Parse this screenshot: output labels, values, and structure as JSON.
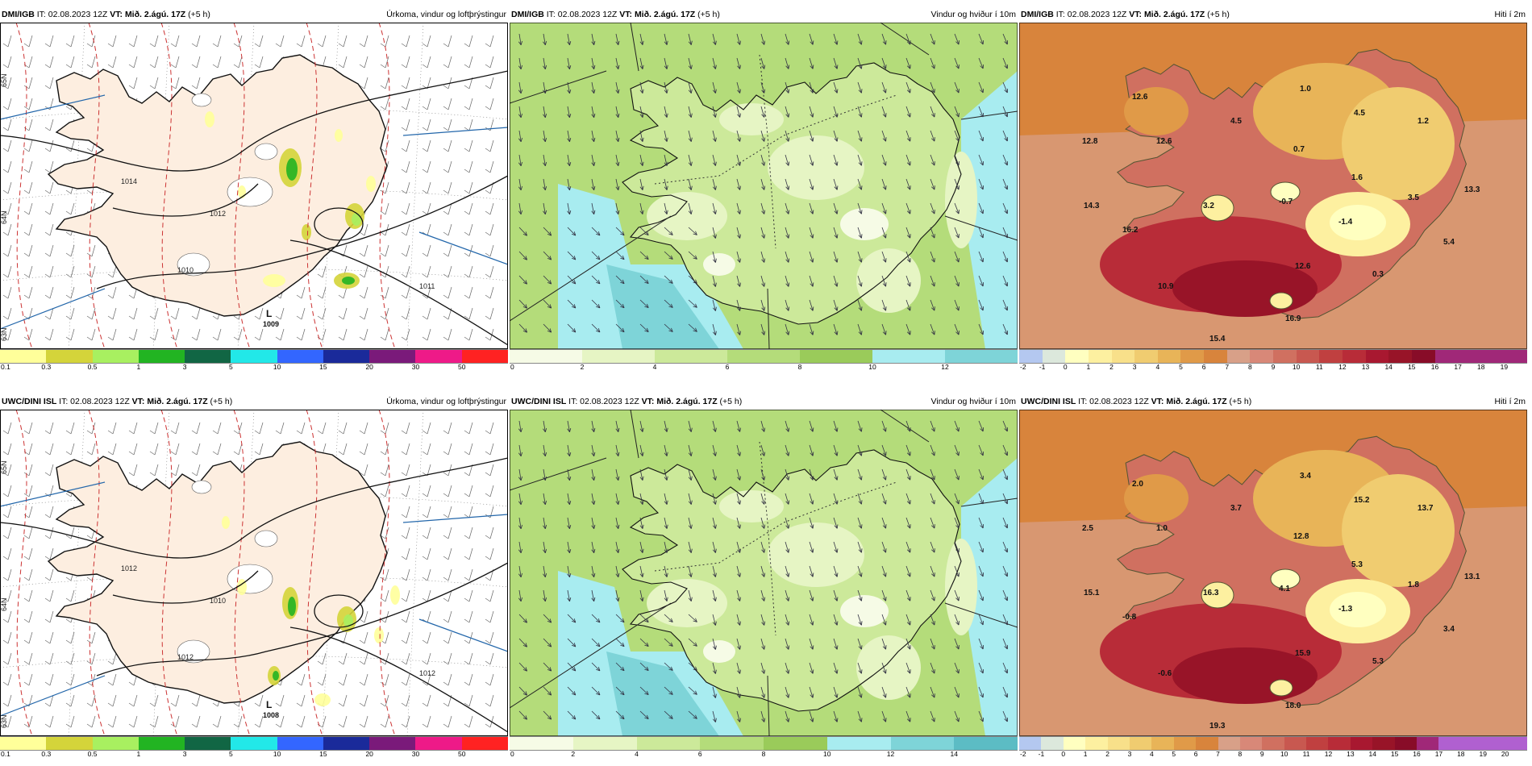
{
  "colors": {
    "precip": [
      "#ffff9a",
      "#d4d43a",
      "#a8f060",
      "#22b422",
      "#116644",
      "#22e8e8",
      "#3366ff",
      "#1a2a9a",
      "#7a1a7a",
      "#ee1a88",
      "#ff2222"
    ],
    "wind": [
      "#f6fbe6",
      "#e6f5c4",
      "#cce99a",
      "#b4dc7a",
      "#9acb5a",
      "#a8ecf0",
      "#7ed4d8",
      "#5cbcc4"
    ],
    "wind2": [
      "#f6fbe6",
      "#e6f5c4",
      "#cce99a",
      "#b4dc7a",
      "#9acb5a",
      "#a8ecf0",
      "#7ed4d8",
      "#5cbcc4",
      "#40a8b0"
    ],
    "temp": [
      "#b4c8f0",
      "#dce8dc",
      "#ffffc0",
      "#fdf0a0",
      "#f8e08a",
      "#f0cc70",
      "#e8b458",
      "#e09a48",
      "#d8843c",
      "#d8a088",
      "#d88878",
      "#d07060",
      "#c85850",
      "#c04040",
      "#b82c38",
      "#a81830",
      "#981428",
      "#880c28",
      "#a02878"
    ],
    "temp2": [
      "#b4c8f0",
      "#dce8dc",
      "#ffffc0",
      "#fdf0a0",
      "#f8e08a",
      "#f0cc70",
      "#e8b458",
      "#e09a48",
      "#d8843c",
      "#d8a088",
      "#d88878",
      "#d07060",
      "#c85850",
      "#c04040",
      "#b82c38",
      "#a81830",
      "#981428",
      "#880c28",
      "#a02878",
      "#b060d0"
    ]
  },
  "icons": {
    "low_marker": "low-pressure-marker",
    "lat_label": "latitude-label",
    "wind_barb": "wind-barb-icon",
    "wind_arrow": "wind-arrow-icon"
  },
  "rows": [
    {
      "model": "DMI/IGB",
      "precip": {
        "title": {
          "model": "DMI/IGB",
          "it": "IT: 02.08.2023 12Z",
          "vt_label": "VT:",
          "vt": "Mið. 2.ágú. 17Z",
          "offset": "(+5 h)",
          "param": "Úrkoma, vindur og loftþrýstingur"
        },
        "ticks": [
          "0.1",
          "0.3",
          "0.5",
          "1",
          "3",
          "5",
          "10",
          "15",
          "20",
          "30",
          "50"
        ],
        "low": {
          "label": "L",
          "value": "1009"
        },
        "isobars": [
          "1010",
          "1014",
          "1012",
          "1011"
        ],
        "lat_labels": [
          "65N",
          "64N",
          "63N"
        ]
      },
      "wind": {
        "title": {
          "model": "DMI/IGB",
          "it": "IT: 02.08.2023 12Z",
          "vt_label": "VT:",
          "vt": "Mið. 2.ágú. 17Z",
          "offset": "(+5 h)",
          "param": "Vindur og hviður í 10m"
        },
        "ticks": [
          "0",
          "2",
          "4",
          "6",
          "8",
          "10",
          "12"
        ]
      },
      "temp": {
        "title": {
          "model": "DMI/IGB",
          "it": "IT: 02.08.2023 12Z",
          "vt_label": "VT:",
          "vt": "Mið. 2.ágú. 17Z",
          "offset": "(+5 h)",
          "param": "Hiti í 2m"
        },
        "ticks": [
          "-2",
          "-1",
          "0",
          "1",
          "2",
          "3",
          "4",
          "5",
          "6",
          "7",
          "8",
          "9",
          "10",
          "11",
          "12",
          "13",
          "14",
          "15",
          "16",
          "17",
          "18",
          "19"
        ],
        "values": [
          "12.6",
          "1.0",
          "4.5",
          "4.5",
          "1.2",
          "12.8",
          "12.6",
          "0.7",
          "1.6",
          "13.3",
          "14.3",
          "3.2",
          "-0.7",
          "3.5",
          "16.2",
          "-1.4",
          "5.4",
          "12.6",
          "0.3",
          "10.9",
          "16.9",
          "15.4"
        ]
      }
    },
    {
      "model": "UWC/DINI ISL",
      "precip": {
        "title": {
          "model": "UWC/DINI ISL",
          "it": "IT: 02.08.2023 12Z",
          "vt_label": "VT:",
          "vt": "Mið. 2.ágú. 17Z",
          "offset": "(+5 h)",
          "param": "Úrkoma, vindur og loftþrýstingur"
        },
        "ticks": [
          "0.1",
          "0.3",
          "0.5",
          "1",
          "3",
          "5",
          "10",
          "15",
          "20",
          "30",
          "50"
        ],
        "low": {
          "label": "L",
          "value": "1008"
        },
        "isobars": [
          "1012",
          "1012",
          "1010",
          "1012"
        ],
        "lat_labels": [
          "65N",
          "64N",
          "63N"
        ]
      },
      "wind": {
        "title": {
          "model": "UWC/DINI ISL",
          "it": "IT: 02.08.2023 12Z",
          "vt_label": "VT:",
          "vt": "Mið. 2.ágú. 17Z",
          "offset": "(+5 h)",
          "param": "Vindur og hviður í 10m"
        },
        "ticks": [
          "0",
          "2",
          "4",
          "6",
          "8",
          "10",
          "12",
          "14"
        ]
      },
      "temp": {
        "title": {
          "model": "UWC/DINI ISL",
          "it": "IT: 02.08.2023 12Z",
          "vt_label": "VT:",
          "vt": "Mið. 2.ágú. 17Z",
          "offset": "(+5 h)",
          "param": "Hiti í 2m"
        },
        "ticks": [
          "-2",
          "-1",
          "0",
          "1",
          "2",
          "3",
          "4",
          "5",
          "6",
          "7",
          "8",
          "9",
          "10",
          "11",
          "12",
          "13",
          "14",
          "15",
          "16",
          "17",
          "18",
          "19",
          "20"
        ],
        "values": [
          "2.0",
          "3.4",
          "3.7",
          "15.2",
          "13.7",
          "2.5",
          "1.0",
          "12.8",
          "5.3",
          "13.1",
          "15.1",
          "16.3",
          "4.1",
          "1.8",
          "-0.8",
          "-1.3",
          "3.4",
          "15.9",
          "5.3",
          "-0.6",
          "18.0",
          "19.3"
        ]
      }
    }
  ]
}
